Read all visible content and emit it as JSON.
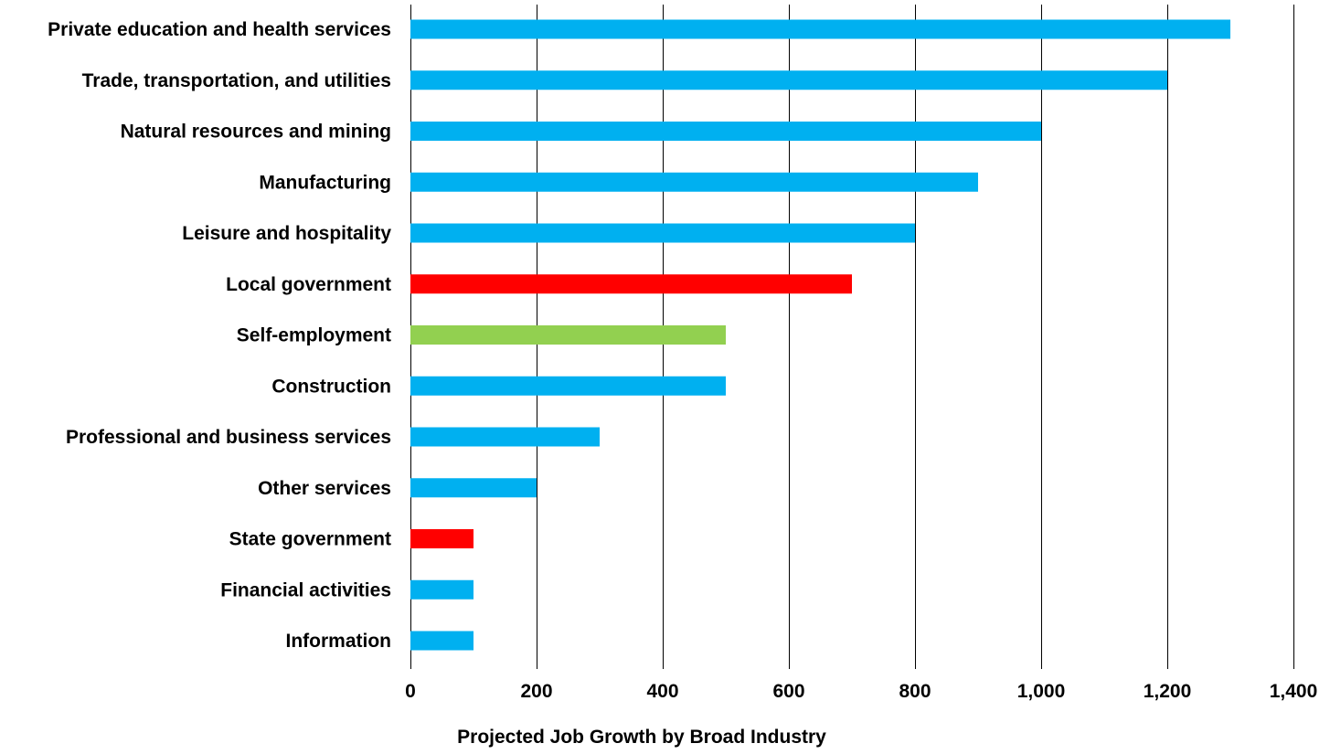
{
  "chart_data": {
    "type": "bar",
    "orientation": "horizontal",
    "title": "",
    "xlabel": "Projected Job Growth by Broad Industry",
    "ylabel": "",
    "xlim": [
      0,
      1400
    ],
    "x_ticks": [
      0,
      200,
      400,
      600,
      800,
      1000,
      1200,
      1400
    ],
    "x_tick_labels": [
      "0",
      "200",
      "400",
      "600",
      "800",
      "1,000",
      "1,200",
      "1,400"
    ],
    "grid": "vertical",
    "legend": "none",
    "categories": [
      "Private education and health services",
      "Trade, transportation, and utilities",
      "Natural resources and mining",
      "Manufacturing",
      "Leisure and hospitality",
      "Local government",
      "Self-employment",
      "Construction",
      "Professional and business services",
      "Other services",
      "State government",
      "Financial activities",
      "Information"
    ],
    "values": [
      1300,
      1200,
      1000,
      900,
      800,
      700,
      500,
      500,
      300,
      200,
      100,
      100,
      100
    ],
    "bar_colors": [
      "#00B0F0",
      "#00B0F0",
      "#00B0F0",
      "#00B0F0",
      "#00B0F0",
      "#FF0000",
      "#92D050",
      "#00B0F0",
      "#00B0F0",
      "#00B0F0",
      "#FF0000",
      "#00B0F0",
      "#00B0F0"
    ]
  }
}
